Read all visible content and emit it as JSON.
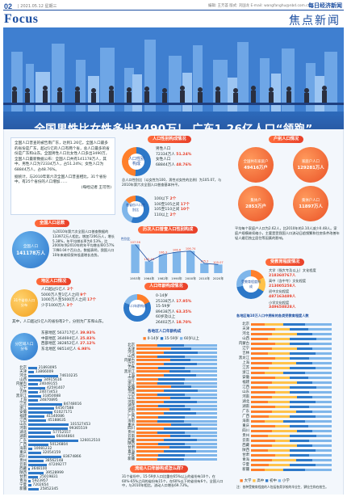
{
  "header": {
    "page_no": "02",
    "date_line": "| 2021.05.12 星期三",
    "credits": "编辑: 王芳荟  版式: 刘国龙  E-mail: wangfanghu@nbd.com.cn",
    "brand": "每日经济新闻",
    "section": "Focus",
    "section_cn": "焦点新闻"
  },
  "headline": "全国男性比女性多出3490万！ 广东1.26亿人口“领跑”",
  "intro": {
    "text": "全国人口普查的被告南广东，达到1.26亿，全国人口最多的省份是广东，超过1亿的人口有两个省，总人口最多的省份是广东和山东。全国男性人口比女性人口多出3490万，全国人口最新数据公布：全国人口共有141178万人，其中，男性人口为72334万人，占51.24%；女性人口为68844万人，占48.76%。",
    "sub": "据统计，与2010年第六次全国人口普查相比，31个省份中，有25个省份的人口增加……",
    "credit": "(每经记者 王可然)"
  },
  "national": {
    "pill": "全国人口总数",
    "circle_label": "全国人口",
    "circle_value": "141178万人",
    "text": "与2010年第六次全国人口普查数据的133972万人相比，增加7206万人，增长5.38%，年平均增长率为0.53%，比2000年到2010年的年平均增长率0.57%下降0.04个百分点。数据表明，我国人口10年来继续保持低速增长态势。"
  },
  "regional": {
    "pill": "地区人口情况",
    "circle_label": "31个省份人口分布",
    "items": [
      {
        "label": "人口超过1亿人",
        "count": "2个"
      },
      {
        "label": "5000万人至1亿人之间",
        "count": "9个"
      },
      {
        "label": "1000万人至5000万人之间",
        "count": "17个"
      },
      {
        "label": "少于1000万人",
        "count": "3个"
      }
    ],
    "note": "其中，人口超过1亿人的省份有2个，分别为广东和山东。",
    "dist_label": "分区域人口分布",
    "regions": [
      {
        "name": "东部地区",
        "value": "563717亿人",
        "pct": "39.93%"
      },
      {
        "name": "中部地区",
        "value": "364694亿人",
        "pct": "25.83%"
      },
      {
        "name": "西部地区",
        "value": "382852亿人",
        "pct": "27.12%"
      },
      {
        "name": "东北地区",
        "value": "98514亿人",
        "pct": "6.98%"
      }
    ]
  },
  "province_list_1": {
    "names": [
      "北京",
      "天津",
      "河北",
      "山西",
      "内蒙古",
      "辽宁",
      "吉林",
      "黑龙江",
      "上海",
      "江苏",
      "浙江",
      "安徽",
      "福建",
      "江西",
      "山东",
      "河南",
      "湖北",
      "湖南",
      "广东",
      "广西",
      "海南",
      "重庆",
      "四川",
      "贵州",
      "云南",
      "西藏",
      "陕西",
      "甘肃",
      "青海",
      "宁夏",
      "新疆"
    ],
    "values": [
      "21893095",
      "13866009",
      "74610235",
      "34915616",
      "24049155",
      "42591407",
      "24073453",
      "31850088",
      "24870895",
      "84748016",
      "64567588",
      "61027171",
      "41540086",
      "45188635",
      "101527453",
      "99365519",
      "57752557",
      "66444864",
      "126012510",
      "50126804",
      "10081232",
      "32054159",
      "83674866",
      "38562148",
      "47209277",
      "3648100",
      "39528999",
      "25019831",
      "5923957",
      "7202654",
      "25852345"
    ]
  },
  "gender": {
    "pill": "人口性别构成情况",
    "donut_label": "人口性别构成",
    "male_label": "男性人口",
    "male_value": "72334万人",
    "male_pct": "51.24%",
    "female_label": "女性人口",
    "female_value": "68844万人",
    "female_pct": "48.76%",
    "note": "总人口性别比（以女性为100，男性对女性的比例）为105.07，与2010年第六次全国人口普查基本持平。",
    "ratio_label": "各省份人口性别比",
    "ratio_items": [
      {
        "label": "100以下",
        "count": "2个"
      },
      {
        "label": "100至105之间",
        "count": "17个"
      },
      {
        "label": "105至110之间",
        "count": "10个"
      },
      {
        "label": "110以上",
        "count": "2个"
      }
    ]
  },
  "history": {
    "pill": "历次人口普查人口性别构成",
    "years": [
      "1953年",
      "1964年",
      "1982年",
      "1990年",
      "2000年",
      "2010年",
      "2020年"
    ],
    "ratio": [
      107.56,
      105.46,
      106.3,
      106.6,
      106.74,
      105.2,
      105.07
    ],
    "ylabel": "性别比"
  },
  "age": {
    "pill": "人口年龄构成情况",
    "donut_label": "人口年龄构成",
    "groups": [
      {
        "label": "0-14岁",
        "value": "25338万人",
        "pct": "17.95%"
      },
      {
        "label": "15-59岁",
        "value": "89438万人",
        "pct": "63.35%"
      },
      {
        "label": "60岁及以上",
        "value": "26402万人",
        "pct": "18.70%"
      }
    ],
    "chart_label": "各地区人口年龄构成",
    "legend": [
      "0-14岁",
      "15-59岁",
      "60岁以上"
    ]
  },
  "household": {
    "pill": "户别人口情况",
    "circles": [
      {
        "label": "全国共有家庭户",
        "value": "49416万户"
      },
      {
        "label": "家庭户人口",
        "value": "129281万人"
      },
      {
        "label": "集体户",
        "value": "2853万户"
      },
      {
        "label": "集体户人口",
        "value": "11897万人"
      }
    ],
    "text": "平均每个家庭户人口为2.62人，比2010年的3.10人减少0.48人。家庭户规模继续缩小，主要是受我国人口流动日趋频繁和住房条件改善年轻人婚后独立居住等因素的影响。"
  },
  "education": {
    "pill": "受教育程度情况",
    "donut_label": "受教育程度构成",
    "items": [
      {
        "label": "大学（指大专及以上）文化程度",
        "value": "218360767人"
      },
      {
        "label": "高中（含中专）文化程度",
        "value": "213005258人"
      },
      {
        "label": "初中文化程度",
        "value": "487163489人"
      },
      {
        "label": "小学文化程度",
        "value": "349658828人"
      }
    ],
    "chart_label": "各地区每10万人口中拥有的各类受教育程度人数",
    "legend": [
      "大学",
      "高中",
      "初中",
      "小学"
    ],
    "note": "注：各种受教育程度的人包括各类学校的毕业生、肄业生和在校生。"
  },
  "migration": {
    "pill": "流动人口年龄构成怎么样?",
    "text": "31个省份中，15-59岁人口比重在65%以上的省份有10个，在60%-65%之间的省份有15个，在60%以下的省份有6个。全国人口中，与2010年相比，流动人口增长69.73%。"
  },
  "colors": {
    "brand": "#1d4fa1",
    "accent": "#e8402a",
    "bar": "#2d78c8"
  }
}
